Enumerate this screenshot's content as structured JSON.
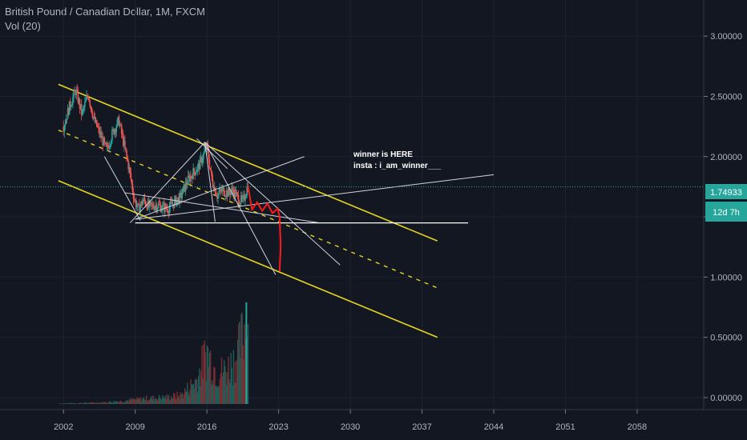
{
  "legend": {
    "title": "British Pound / Canadian Dollar, 1M, FXCM",
    "indicator": "Vol (20)"
  },
  "annotation": {
    "line1": "winner is HERE",
    "line2": "insta : i_am_winner___"
  },
  "price_label": {
    "value": "1.74933",
    "countdown": "12d 7h"
  },
  "colors": {
    "background": "#131722",
    "up": "#26a69a",
    "down": "#ef5350",
    "channel": "#e5d61f",
    "trendline": "#d1d4dc",
    "projection": "#ff1a1a",
    "price_line": "#26a69a"
  },
  "chart_data": {
    "type": "candlestick",
    "price_axis": {
      "ticks": [
        "3.00000",
        "2.50000",
        "2.00000",
        "1.50000",
        "1.00000",
        "0.50000",
        "0.00000"
      ],
      "tick_values": [
        3.0,
        2.5,
        2.0,
        1.5,
        1.0,
        0.5,
        0.0
      ],
      "range": [
        -0.1,
        3.3
      ]
    },
    "time_axis": {
      "ticks": [
        "2002",
        "2009",
        "2016",
        "2023",
        "2030",
        "2037",
        "2044",
        "2051",
        "2058"
      ],
      "tick_values": [
        2002,
        2009,
        2016,
        2023,
        2030,
        2037,
        2044,
        2051,
        2058
      ],
      "range": [
        1995.8,
        2064.5
      ]
    },
    "current_price": 1.74933,
    "price_series": [
      [
        2002.0,
        2.25
      ],
      [
        2002.6,
        2.42
      ],
      [
        2003.2,
        2.55
      ],
      [
        2003.8,
        2.35
      ],
      [
        2004.4,
        2.52
      ],
      [
        2005.0,
        2.3
      ],
      [
        2005.6,
        2.18
      ],
      [
        2006.2,
        2.05
      ],
      [
        2006.8,
        2.2
      ],
      [
        2007.4,
        2.3
      ],
      [
        2007.9,
        2.1
      ],
      [
        2008.4,
        1.9
      ],
      [
        2008.9,
        1.65
      ],
      [
        2009.3,
        1.56
      ],
      [
        2009.8,
        1.64
      ],
      [
        2010.4,
        1.58
      ],
      [
        2011.0,
        1.6
      ],
      [
        2011.6,
        1.58
      ],
      [
        2012.2,
        1.57
      ],
      [
        2012.8,
        1.62
      ],
      [
        2013.4,
        1.66
      ],
      [
        2014.0,
        1.78
      ],
      [
        2014.6,
        1.86
      ],
      [
        2015.2,
        1.92
      ],
      [
        2015.7,
        2.02
      ],
      [
        2016.0,
        2.08
      ],
      [
        2016.5,
        1.8
      ],
      [
        2017.0,
        1.68
      ],
      [
        2017.5,
        1.72
      ],
      [
        2018.0,
        1.7
      ],
      [
        2018.5,
        1.72
      ],
      [
        2019.0,
        1.66
      ],
      [
        2019.5,
        1.62
      ],
      [
        2020.0,
        1.76
      ]
    ],
    "projection": [
      [
        2020.0,
        1.76
      ],
      [
        2020.4,
        1.56
      ],
      [
        2020.9,
        1.62
      ],
      [
        2021.4,
        1.55
      ],
      [
        2021.9,
        1.61
      ],
      [
        2022.4,
        1.53
      ],
      [
        2022.9,
        1.57
      ],
      [
        2023.1,
        1.5
      ],
      [
        2023.2,
        1.26
      ],
      [
        2023.1,
        1.05
      ]
    ],
    "volume_axis": {
      "ticks": [
        "0.50000",
        "0.00000"
      ]
    },
    "volume_series": [
      [
        2002.0,
        0.005
      ],
      [
        2004.0,
        0.01
      ],
      [
        2006.0,
        0.015
      ],
      [
        2008.0,
        0.03
      ],
      [
        2010.0,
        0.05
      ],
      [
        2012.0,
        0.06
      ],
      [
        2013.5,
        0.08
      ],
      [
        2015.0,
        0.22
      ],
      [
        2016.0,
        0.48
      ],
      [
        2017.0,
        0.28
      ],
      [
        2018.0,
        0.32
      ],
      [
        2019.0,
        0.45
      ],
      [
        2019.8,
        0.72
      ],
      [
        2020.0,
        0.18
      ]
    ],
    "channel_upper": [
      [
        2001.5,
        2.6
      ],
      [
        2038.5,
        1.3
      ]
    ],
    "channel_mid": [
      [
        2001.5,
        2.22
      ],
      [
        2038.5,
        0.91
      ]
    ],
    "channel_lower": [
      [
        2001.5,
        1.8
      ],
      [
        2038.5,
        0.5
      ]
    ],
    "horizontal_line": [
      [
        2009.0,
        1.45
      ],
      [
        2041.5,
        1.45
      ]
    ],
    "trendlines": [
      [
        [
          2008.5,
          1.45
        ],
        [
          2015.8,
          2.12
        ]
      ],
      [
        [
          2009.0,
          1.48
        ],
        [
          2025.5,
          2.0
        ]
      ],
      [
        [
          2009.0,
          1.48
        ],
        [
          2044.0,
          1.85
        ]
      ],
      [
        [
          2006.0,
          2.0
        ],
        [
          2009.5,
          1.47
        ]
      ],
      [
        [
          2015.8,
          2.12
        ],
        [
          2022.7,
          1.02
        ]
      ],
      [
        [
          2015.8,
          2.12
        ],
        [
          2029.0,
          1.1
        ]
      ],
      [
        [
          2015.8,
          2.12
        ],
        [
          2016.8,
          1.46
        ]
      ],
      [
        [
          2008.0,
          1.7
        ],
        [
          2027.0,
          1.45
        ]
      ],
      [
        [
          2015.0,
          2.15
        ],
        [
          2018.0,
          1.9
        ]
      ]
    ]
  }
}
